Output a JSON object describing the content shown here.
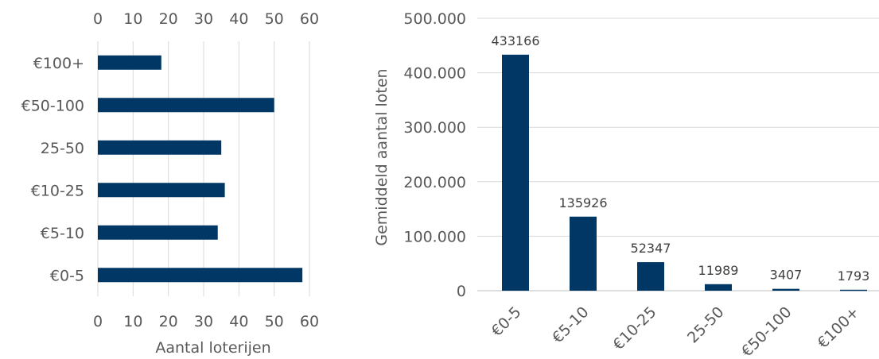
{
  "chart_data": [
    {
      "type": "bar",
      "orientation": "horizontal",
      "categories": [
        "€0-5",
        "€5-10",
        "€10-25",
        "25-50",
        "€50-100",
        "€100+"
      ],
      "values": [
        58,
        34,
        36,
        35,
        50,
        18
      ],
      "xlabel": "Aantal loterijen",
      "xlim": [
        0,
        60
      ],
      "xticks": [
        "0",
        "10",
        "20",
        "30",
        "40",
        "50",
        "60"
      ],
      "grid": true,
      "color": "#003764"
    },
    {
      "type": "bar",
      "categories": [
        "€0-5",
        "€5-10",
        "€10-25",
        "25-50",
        "€50-100",
        "€100+"
      ],
      "values": [
        433166,
        135926,
        52347,
        11989,
        3407,
        1793
      ],
      "data_labels": [
        "433166",
        "135926",
        "52347",
        "11989",
        "3407",
        "1793"
      ],
      "ylabel": "Gemiddeld aantal loten",
      "ylim": [
        0,
        500000
      ],
      "yticks": [
        "0",
        "100.000",
        "200.000",
        "300.000",
        "400.000",
        "500.000"
      ],
      "grid": true,
      "color": "#003764"
    }
  ]
}
